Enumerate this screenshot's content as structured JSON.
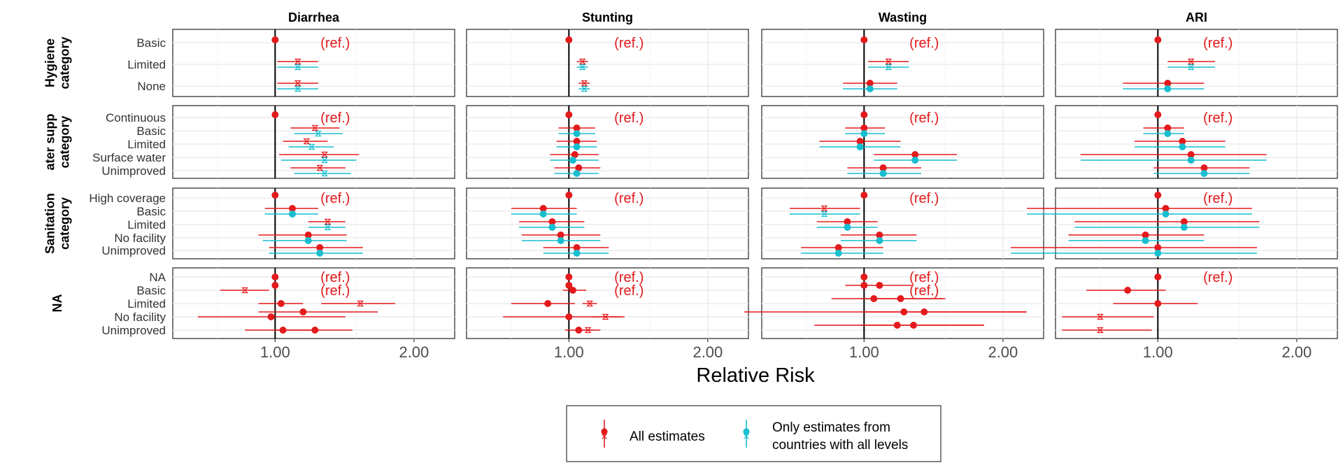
{
  "chart_data": {
    "type": "scatter",
    "subtype": "faceted forest plot (point estimates with confidence intervals)",
    "xlabel": "Relative Risk",
    "x_scale": "log",
    "xlim": [
      0.6,
      2.45
    ],
    "x_ticks": [
      1.0,
      2.0
    ],
    "x_tick_labels": [
      "1.00",
      "2.00"
    ],
    "reference_line": 1.0,
    "ref_label": "(ref.)",
    "grid": true,
    "legend_position": "bottom",
    "legend": [
      {
        "key": "all",
        "label_lines": [
          "All estimates"
        ],
        "color": "#e41a1c"
      },
      {
        "key": "complete",
        "label_lines": [
          "Only estimates from",
          "countries with all levels"
        ],
        "color": "#17becf"
      }
    ],
    "columns": [
      "Diarrhea",
      "Stunting",
      "Wasting",
      "ARI"
    ],
    "rows": [
      {
        "label_lines": [
          "Hygiene",
          "category"
        ],
        "levels": [
          "Basic",
          "Limited",
          "None"
        ]
      },
      {
        "label_lines": [
          "ater supp",
          "category"
        ],
        "levels": [
          "Continuous",
          "Basic",
          "Limited",
          "Surface water",
          "Unimproved"
        ]
      },
      {
        "label_lines": [
          "Sanitation",
          "category"
        ],
        "levels": [
          "High coverage",
          "Basic",
          "Limited",
          "No facility",
          "Unimproved"
        ]
      },
      {
        "label_lines": [
          "NA"
        ],
        "levels": [
          "NA",
          "Basic",
          "Limited",
          "No facility",
          "Unimproved"
        ]
      }
    ],
    "panels": [
      [
        {
          "all": [
            [
              1.0,
              null,
              null,
              "dot"
            ],
            [
              1.12,
              1.01,
              1.24,
              "x"
            ],
            [
              1.12,
              1.01,
              1.24,
              "x"
            ]
          ],
          "complete": [
            null,
            [
              1.12,
              1.01,
              1.24,
              "x"
            ],
            [
              1.12,
              1.01,
              1.24,
              "x"
            ]
          ],
          "refs": [
            0
          ]
        },
        {
          "all": [
            [
              1.0,
              null,
              null,
              "dot"
            ],
            [
              1.22,
              1.08,
              1.38,
              "x"
            ],
            [
              1.17,
              1.04,
              1.3,
              "x"
            ],
            [
              1.28,
              1.02,
              1.52,
              "x"
            ],
            [
              1.25,
              1.08,
              1.42,
              "x"
            ]
          ],
          "complete": [
            null,
            [
              1.24,
              1.1,
              1.4,
              "x"
            ],
            [
              1.2,
              1.07,
              1.34,
              "x"
            ],
            [
              1.28,
              1.03,
              1.5,
              "x"
            ],
            [
              1.28,
              1.1,
              1.46,
              "x"
            ]
          ],
          "refs": [
            0
          ]
        },
        {
          "all": [
            [
              1.0,
              null,
              null,
              "dot"
            ],
            [
              1.09,
              0.95,
              1.24,
              "dot"
            ],
            [
              1.3,
              1.18,
              1.42,
              "x"
            ],
            [
              1.18,
              0.92,
              1.43,
              "dot"
            ],
            [
              1.25,
              0.97,
              1.55,
              "dot"
            ]
          ],
          "complete": [
            null,
            [
              1.09,
              0.95,
              1.24,
              "dot"
            ],
            [
              1.3,
              1.18,
              1.42,
              "x"
            ],
            [
              1.18,
              0.94,
              1.43,
              "dot"
            ],
            [
              1.25,
              0.97,
              1.55,
              "dot"
            ]
          ],
          "refs": [
            0
          ]
        },
        {
          "all": [
            [
              1.0,
              null,
              null,
              "dot"
            ],
            [
              1.0,
              null,
              null,
              "dot"
            ],
            [
              1.03,
              0.92,
              1.15,
              "dot"
            ],
            [
              0.98,
              0.68,
              1.42,
              "dot"
            ],
            [
              1.04,
              0.86,
              1.25,
              "dot"
            ],
            [
              0.86,
              0.76,
              0.97,
              "x"
            ],
            [
              1.53,
              1.26,
              1.82,
              "x"
            ],
            [
              1.15,
              0.92,
              1.67,
              "dot"
            ],
            [
              1.22,
              1.01,
              1.47,
              "dot"
            ]
          ],
          "rows": [
            0,
            1,
            2,
            3,
            4,
            1,
            2,
            3,
            4
          ],
          "offsets": [
            0,
            -7,
            0,
            0,
            0,
            0,
            0,
            -7,
            0
          ],
          "refs": [
            0,
            1
          ]
        }
      ],
      [
        {
          "all": [
            [
              1.0,
              null,
              null,
              "dot"
            ],
            [
              1.07,
              1.04,
              1.1,
              "x"
            ],
            [
              1.08,
              1.05,
              1.11,
              "x"
            ]
          ],
          "complete": [
            null,
            [
              1.07,
              1.04,
              1.1,
              "x"
            ],
            [
              1.08,
              1.05,
              1.11,
              "x"
            ]
          ],
          "refs": [
            0
          ]
        },
        {
          "all": [
            [
              1.0,
              null,
              null,
              "dot"
            ],
            [
              1.04,
              0.95,
              1.14,
              "dot"
            ],
            [
              1.04,
              0.94,
              1.15,
              "dot"
            ],
            [
              1.03,
              0.91,
              1.16,
              "dot"
            ],
            [
              1.05,
              0.93,
              1.17,
              "dot"
            ]
          ],
          "complete": [
            null,
            [
              1.04,
              0.95,
              1.14,
              "dot"
            ],
            [
              1.04,
              0.94,
              1.15,
              "dot"
            ],
            [
              1.02,
              0.91,
              1.16,
              "dot"
            ],
            [
              1.04,
              0.93,
              1.16,
              "dot"
            ]
          ],
          "refs": [
            0
          ]
        },
        {
          "all": [
            [
              1.0,
              null,
              null,
              "dot"
            ],
            [
              0.88,
              0.75,
              1.04,
              "dot"
            ],
            [
              0.92,
              0.78,
              1.08,
              "dot"
            ],
            [
              0.96,
              0.79,
              1.17,
              "dot"
            ],
            [
              1.04,
              0.88,
              1.22,
              "dot"
            ]
          ],
          "complete": [
            null,
            [
              0.88,
              0.75,
              1.04,
              "dot"
            ],
            [
              0.92,
              0.78,
              1.08,
              "dot"
            ],
            [
              0.96,
              0.79,
              1.17,
              "dot"
            ],
            [
              1.04,
              0.88,
              1.22,
              "dot"
            ]
          ],
          "refs": [
            0
          ]
        },
        {
          "all": [
            [
              1.0,
              null,
              null,
              "dot"
            ],
            [
              1.0,
              null,
              null,
              "dot"
            ],
            [
              0.9,
              0.75,
              1.03,
              "dot"
            ],
            [
              1.0,
              0.72,
              1.3,
              "dot"
            ],
            [
              1.05,
              0.98,
              1.13,
              "dot"
            ],
            [
              1.02,
              0.97,
              1.09,
              "dot"
            ],
            [
              1.11,
              1.07,
              1.15,
              "x"
            ],
            [
              1.2,
              1.12,
              1.32,
              "x"
            ],
            [
              1.1,
              1.06,
              1.17,
              "x"
            ]
          ],
          "rows": [
            0,
            1,
            2,
            3,
            4,
            1,
            2,
            3,
            4
          ],
          "offsets": [
            0,
            -7,
            0,
            0,
            0,
            0,
            0,
            0,
            0
          ],
          "refs": [
            0,
            1
          ]
        }
      ],
      [
        {
          "all": [
            [
              1.0,
              null,
              null,
              "dot"
            ],
            [
              1.13,
              1.02,
              1.25,
              "x"
            ],
            [
              1.03,
              0.9,
              1.18,
              "dot"
            ]
          ],
          "complete": [
            null,
            [
              1.13,
              1.02,
              1.25,
              "x"
            ],
            [
              1.03,
              0.9,
              1.18,
              "dot"
            ]
          ],
          "refs": [
            0
          ]
        },
        {
          "all": [
            [
              1.0,
              null,
              null,
              "dot"
            ],
            [
              1.0,
              0.91,
              1.11,
              "dot"
            ],
            [
              0.98,
              0.8,
              1.2,
              "dot"
            ],
            [
              1.29,
              1.05,
              1.59,
              "dot"
            ],
            [
              1.1,
              0.92,
              1.33,
              "dot"
            ]
          ],
          "complete": [
            null,
            [
              1.0,
              0.91,
              1.11,
              "dot"
            ],
            [
              0.98,
              0.8,
              1.2,
              "dot"
            ],
            [
              1.29,
              1.05,
              1.59,
              "dot"
            ],
            [
              1.1,
              0.92,
              1.33,
              "dot"
            ]
          ],
          "refs": [
            0
          ]
        },
        {
          "all": [
            [
              1.0,
              null,
              null,
              "dot"
            ],
            [
              0.82,
              0.69,
              0.98,
              "x"
            ],
            [
              0.92,
              0.79,
              1.07,
              "dot"
            ],
            [
              1.08,
              0.89,
              1.3,
              "dot"
            ],
            [
              0.88,
              0.73,
              1.1,
              "dot"
            ]
          ],
          "complete": [
            null,
            [
              0.82,
              0.69,
              0.98,
              "x"
            ],
            [
              0.92,
              0.79,
              1.07,
              "dot"
            ],
            [
              1.08,
              0.89,
              1.3,
              "dot"
            ],
            [
              0.88,
              0.73,
              1.1,
              "dot"
            ]
          ],
          "refs": [
            0
          ]
        },
        {
          "all": [
            [
              1.0,
              null,
              null,
              "dot"
            ],
            [
              1.0,
              null,
              null,
              "dot"
            ],
            [
              1.05,
              0.85,
              1.5,
              "dot"
            ],
            [
              1.22,
              0.55,
              2.25,
              "dot"
            ],
            [
              1.18,
              0.78,
              1.82,
              "dot"
            ],
            [
              1.08,
              0.91,
              1.27,
              "dot"
            ],
            [
              1.2,
              0.98,
              1.48,
              "dot"
            ],
            [
              1.35,
              1.0,
              2.25,
              "dot"
            ],
            [
              1.28,
              0.98,
              1.82,
              "dot"
            ]
          ],
          "rows": [
            0,
            1,
            2,
            3,
            4,
            1,
            2,
            3,
            4
          ],
          "offsets": [
            0,
            -7,
            -7,
            -7,
            -7,
            -7,
            -7,
            -7,
            -7
          ],
          "refs": [
            0,
            1
          ]
        }
      ],
      [
        {
          "all": [
            [
              1.0,
              null,
              null,
              "dot"
            ],
            [
              1.18,
              1.05,
              1.33,
              "x"
            ],
            [
              1.05,
              0.84,
              1.26,
              "dot"
            ]
          ],
          "complete": [
            null,
            [
              1.18,
              1.05,
              1.33,
              "x"
            ],
            [
              1.05,
              0.84,
              1.26,
              "dot"
            ]
          ],
          "refs": [
            0
          ]
        },
        {
          "all": [
            [
              1.0,
              null,
              null,
              "dot"
            ],
            [
              1.05,
              0.93,
              1.14,
              "dot"
            ],
            [
              1.13,
              0.89,
              1.4,
              "dot"
            ],
            [
              1.18,
              0.68,
              1.72,
              "dot"
            ],
            [
              1.26,
              0.98,
              1.58,
              "dot"
            ]
          ],
          "complete": [
            null,
            [
              1.05,
              0.93,
              1.14,
              "dot"
            ],
            [
              1.13,
              0.89,
              1.4,
              "dot"
            ],
            [
              1.18,
              0.68,
              1.72,
              "dot"
            ],
            [
              1.26,
              0.98,
              1.58,
              "dot"
            ]
          ],
          "refs": [
            0
          ]
        },
        {
          "all": [
            [
              1.0,
              null,
              null,
              "dot"
            ],
            [
              1.04,
              0.52,
              1.6,
              "dot"
            ],
            [
              1.14,
              0.66,
              1.66,
              "dot"
            ],
            [
              0.94,
              0.64,
              1.26,
              "dot"
            ],
            [
              1.0,
              0.48,
              1.64,
              "dot"
            ]
          ],
          "complete": [
            null,
            [
              1.04,
              0.52,
              1.6,
              "dot"
            ],
            [
              1.14,
              0.66,
              1.66,
              "dot"
            ],
            [
              0.94,
              0.64,
              1.26,
              "dot"
            ],
            [
              1.0,
              0.48,
              1.64,
              "dot"
            ]
          ],
          "refs": [
            0
          ]
        },
        {
          "all": [
            [
              1.0,
              null,
              null,
              "dot"
            ],
            [
              0.86,
              0.7,
              1.04,
              "dot"
            ],
            [
              1.0,
              0.8,
              1.22,
              "dot"
            ],
            [
              0.75,
              0.62,
              0.98,
              "x"
            ],
            [
              0.75,
              0.62,
              0.97,
              "x"
            ]
          ],
          "rows": [
            0,
            1,
            2,
            3,
            4
          ],
          "offsets": [
            0,
            0,
            0,
            0,
            0
          ],
          "refs": [
            0
          ]
        }
      ]
    ]
  }
}
